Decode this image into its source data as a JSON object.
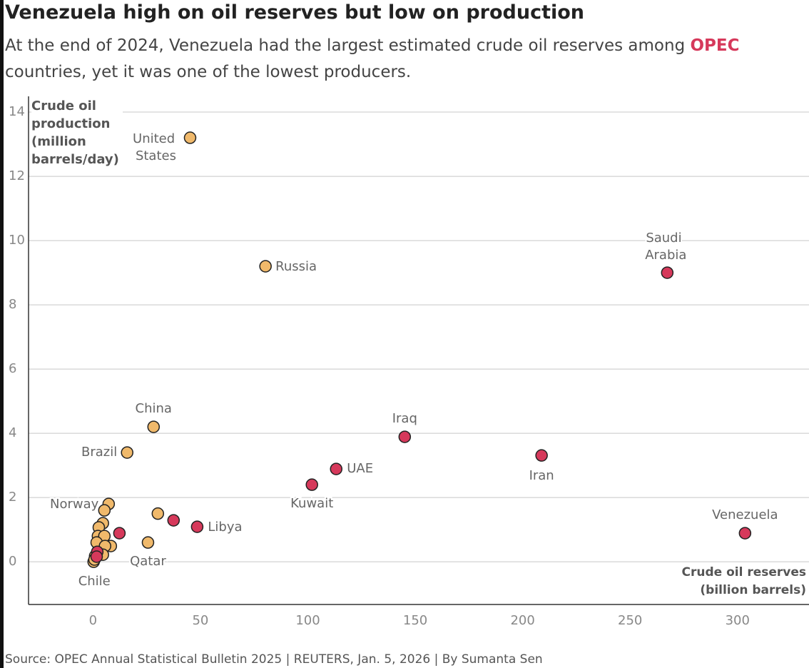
{
  "chart_data": {
    "type": "scatter",
    "title": "Venezuela high on oil reserves but low on production",
    "subtitle": [
      "At the end of 2024, Venezuela had the largest estimated crude oil reserves among",
      "OPEC",
      "countries, yet it was one of the lowest producers."
    ],
    "y_label": "Crude oil production (million barrels/day)",
    "x_label": "Crude oil reserves (billion barrels)",
    "source": "Source: OPEC Annual Statistical Bulletin 2025 | REUTERS, Jan. 5, 2026 | By Sumanta Sen",
    "xlim": [
      -30,
      334.6
    ],
    "ylim": [
      -1.33,
      14.49
    ],
    "xticks": [
      0,
      50,
      100,
      150,
      200,
      250,
      300
    ],
    "yticks": [
      0,
      2,
      4,
      6,
      8,
      10,
      12,
      14
    ],
    "grid": true,
    "series": [
      {
        "color": "#f0b96b",
        "x": [
          45.2,
          80.3,
          28.2,
          15.9,
          7.3,
          25.6,
          0.3,
          30.2,
          5.3,
          4.6,
          2.7,
          2.3,
          5.3,
          1.7,
          8.3,
          5.6,
          4.6,
          1.0,
          0.7
        ],
        "values": [
          13.2,
          9.2,
          4.2,
          3.4,
          1.8,
          0.6,
          0,
          1.5,
          1.6,
          1.2,
          1.07,
          0.8,
          0.8,
          0.6,
          0.49,
          0.49,
          0.22,
          0.18,
          0.07
        ],
        "labels": [
          "United States",
          "Russia",
          "China",
          "Brazil",
          "Norway",
          "Qatar",
          "Chile",
          null,
          null,
          null,
          null,
          null,
          null,
          null,
          null,
          null,
          null,
          null,
          null
        ]
      },
      {
        "color": "#d6395b",
        "x": [
          267.3,
          303.5,
          145.1,
          208.8,
          113.2,
          101.9,
          48.5,
          37.5,
          12.3,
          2.0,
          1.7
        ],
        "values": [
          9.0,
          0.89,
          3.89,
          3.31,
          2.89,
          2.4,
          1.09,
          1.29,
          0.89,
          0.31,
          0.16
        ],
        "labels": [
          "Saudi Arabia",
          "Venezuela",
          "Iraq",
          "Iran",
          "UAE",
          "Kuwait",
          "Libya",
          null,
          null,
          null,
          null
        ]
      }
    ]
  }
}
